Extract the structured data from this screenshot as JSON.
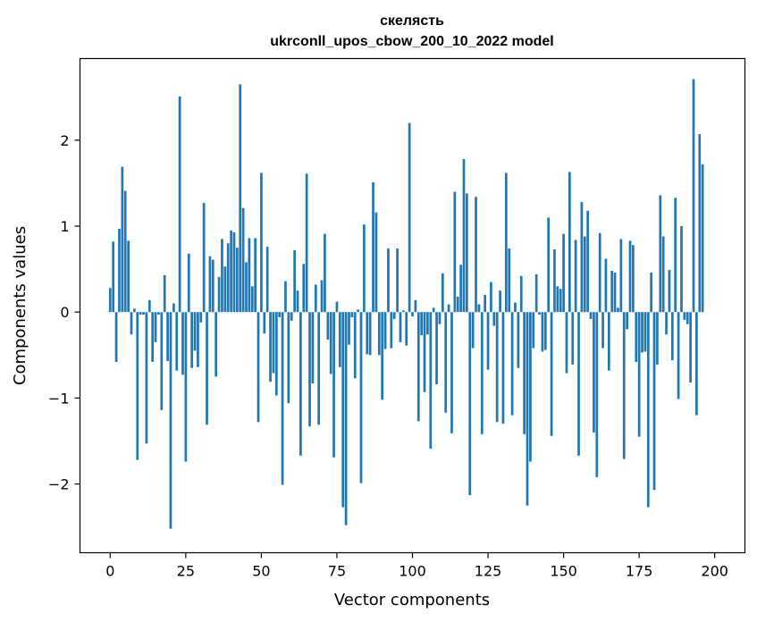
{
  "chart_data": {
    "type": "bar",
    "title": "скелясть",
    "subtitle": "ukrconll_upos_cbow_200_10_2022 model",
    "xlabel": "Vector components",
    "ylabel": "Components values",
    "xlim": [
      -10,
      210
    ],
    "ylim": [
      -2.8,
      2.95
    ],
    "x_ticks": [
      0,
      25,
      50,
      75,
      100,
      125,
      150,
      175,
      200
    ],
    "x_tick_labels": [
      "0",
      "25",
      "50",
      "75",
      "100",
      "125",
      "150",
      "175",
      "200"
    ],
    "y_ticks": [
      -2,
      -1,
      0,
      1,
      2
    ],
    "y_tick_labels": [
      "−2",
      "−1",
      "0",
      "1",
      "2"
    ],
    "bar_color": "#1f77b4",
    "grid": false,
    "values": [
      0.28,
      0.82,
      -0.58,
      0.97,
      1.69,
      1.41,
      0.83,
      -0.26,
      0.04,
      -1.72,
      -0.03,
      -0.03,
      -1.53,
      0.14,
      -0.58,
      -0.35,
      -0.03,
      -1.14,
      0.43,
      -0.57,
      -2.52,
      0.1,
      -0.68,
      2.51,
      -0.73,
      -1.74,
      0.68,
      -0.65,
      -0.45,
      -0.64,
      -0.12,
      1.27,
      -1.31,
      0.65,
      0.61,
      -0.75,
      0.41,
      0.85,
      0.53,
      0.8,
      0.95,
      0.93,
      0.75,
      2.65,
      1.21,
      0.58,
      0.86,
      0.3,
      0.86,
      -1.28,
      1.62,
      -0.25,
      0.76,
      -0.81,
      -0.71,
      -0.97,
      -0.06,
      -2.01,
      0.36,
      -1.06,
      -0.1,
      0.72,
      0.25,
      -1.67,
      0.56,
      1.61,
      -1.33,
      -0.83,
      0.32,
      -1.31,
      0.37,
      0.91,
      -0.32,
      -0.72,
      -1.69,
      0.12,
      -0.64,
      -2.27,
      -2.48,
      -0.38,
      -0.06,
      -0.77,
      0.03,
      -1.99,
      1.02,
      -0.49,
      -0.5,
      1.51,
      1.16,
      -0.5,
      -1.02,
      -0.43,
      0.74,
      -0.42,
      -0.08,
      0.74,
      -0.35,
      0.02,
      -0.39,
      2.2,
      -0.05,
      0.14,
      -1.27,
      -0.27,
      -0.93,
      -0.26,
      -1.59,
      0.05,
      -0.84,
      -0.14,
      0.45,
      -1.17,
      0.09,
      -1.41,
      1.4,
      0.18,
      0.55,
      1.78,
      1.38,
      -2.13,
      -0.42,
      1.34,
      0.09,
      -1.42,
      0.2,
      -0.67,
      0.35,
      -0.16,
      -1.28,
      0.25,
      -1.3,
      1.62,
      0.74,
      -1.2,
      0.11,
      -0.65,
      0.42,
      -1.42,
      -2.25,
      -1.74,
      -0.42,
      0.44,
      -0.03,
      -0.46,
      -0.44,
      1.1,
      -1.44,
      0.73,
      0.3,
      0.27,
      0.91,
      -0.71,
      1.63,
      -0.61,
      0.84,
      -1.67,
      1.28,
      0.88,
      1.18,
      -0.08,
      -1.4,
      -1.92,
      0.92,
      -0.42,
      0.62,
      -0.68,
      0.48,
      0.46,
      0.05,
      0.85,
      -1.71,
      -0.2,
      0.83,
      0.78,
      -0.58,
      -1.45,
      -0.47,
      -0.46,
      -2.27,
      0.46,
      -2.07,
      -0.61,
      1.36,
      0.88,
      -0.26,
      0.49,
      -0.56,
      1.33,
      -1.01,
      1.0,
      -0.09,
      -0.14,
      -0.82,
      2.71,
      -1.2,
      2.07,
      1.72
    ]
  }
}
